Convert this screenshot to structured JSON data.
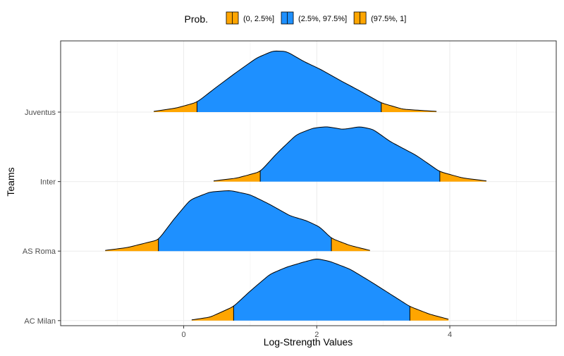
{
  "chart_data": {
    "type": "area",
    "subtype": "ridgeline",
    "title": "",
    "xlabel": "Log-Strength Values",
    "ylabel": "Teams",
    "xlim": [
      -1.85,
      5.6
    ],
    "x_ticks": [
      0,
      2,
      4
    ],
    "grid": true,
    "legend": {
      "title": "Prob.",
      "position": "top",
      "entries": [
        {
          "label": "(0, 2.5%]",
          "color": "#FFA500"
        },
        {
          "label": "(2.5%, 97.5%]",
          "color": "#1E90FF"
        },
        {
          "label": "(97.5%, 1]",
          "color": "#FFA500"
        }
      ]
    },
    "colors": {
      "tail": "#FFA500",
      "center": "#1E90FF",
      "outline": "#000000"
    },
    "categories": [
      "AC Milan",
      "AS Roma",
      "Inter",
      "Juventus"
    ],
    "series": [
      {
        "name": "AC Milan",
        "quantiles": [
          0.75,
          3.4
        ],
        "points": [
          [
            0.12,
            0.01
          ],
          [
            0.4,
            0.05
          ],
          [
            0.75,
            0.2
          ],
          [
            1.0,
            0.42
          ],
          [
            1.3,
            0.66
          ],
          [
            1.55,
            0.76
          ],
          [
            1.8,
            0.83
          ],
          [
            2.0,
            0.88
          ],
          [
            2.2,
            0.84
          ],
          [
            2.5,
            0.73
          ],
          [
            2.8,
            0.56
          ],
          [
            3.1,
            0.38
          ],
          [
            3.4,
            0.2
          ],
          [
            3.7,
            0.09
          ],
          [
            3.98,
            0.02
          ]
        ]
      },
      {
        "name": "AS Roma",
        "quantiles": [
          -0.38,
          2.22
        ],
        "points": [
          [
            -1.18,
            0.01
          ],
          [
            -0.85,
            0.05
          ],
          [
            -0.38,
            0.16
          ],
          [
            -0.15,
            0.45
          ],
          [
            0.1,
            0.73
          ],
          [
            0.4,
            0.84
          ],
          [
            0.7,
            0.86
          ],
          [
            1.0,
            0.8
          ],
          [
            1.3,
            0.66
          ],
          [
            1.6,
            0.5
          ],
          [
            1.85,
            0.43
          ],
          [
            2.05,
            0.34
          ],
          [
            2.22,
            0.18
          ],
          [
            2.5,
            0.08
          ],
          [
            2.8,
            0.01
          ]
        ]
      },
      {
        "name": "Inter",
        "quantiles": [
          1.15,
          3.85
        ],
        "points": [
          [
            0.45,
            0.01
          ],
          [
            0.8,
            0.05
          ],
          [
            1.15,
            0.14
          ],
          [
            1.4,
            0.4
          ],
          [
            1.7,
            0.67
          ],
          [
            1.95,
            0.76
          ],
          [
            2.15,
            0.78
          ],
          [
            2.4,
            0.74
          ],
          [
            2.65,
            0.78
          ],
          [
            2.85,
            0.74
          ],
          [
            3.1,
            0.57
          ],
          [
            3.5,
            0.37
          ],
          [
            3.85,
            0.14
          ],
          [
            4.2,
            0.05
          ],
          [
            4.55,
            0.01
          ]
        ]
      },
      {
        "name": "Juventus",
        "quantiles": [
          0.2,
          2.97
        ],
        "points": [
          [
            -0.45,
            0.01
          ],
          [
            -0.1,
            0.06
          ],
          [
            0.2,
            0.14
          ],
          [
            0.5,
            0.36
          ],
          [
            0.8,
            0.57
          ],
          [
            1.1,
            0.77
          ],
          [
            1.35,
            0.87
          ],
          [
            1.55,
            0.86
          ],
          [
            1.8,
            0.72
          ],
          [
            2.05,
            0.61
          ],
          [
            2.35,
            0.45
          ],
          [
            2.65,
            0.3
          ],
          [
            2.97,
            0.13
          ],
          [
            3.3,
            0.04
          ],
          [
            3.8,
            0.01
          ]
        ]
      }
    ]
  }
}
